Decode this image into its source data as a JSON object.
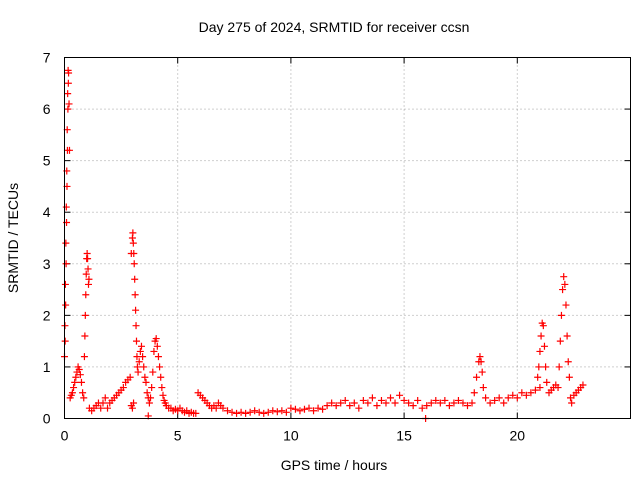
{
  "chart_data": {
    "type": "scatter",
    "title": "Day 275 of 2024, SRMTID for receiver ccsn",
    "xlabel": "GPS time / hours",
    "ylabel": "SRMTID / TECUs",
    "xlim": [
      0,
      25
    ],
    "ylim": [
      0,
      7
    ],
    "xticks": [
      0,
      5,
      10,
      15,
      20
    ],
    "xtick_labels": [
      "0",
      "5",
      "10",
      "15",
      "20"
    ],
    "yticks": [
      0,
      1,
      2,
      3,
      4,
      5,
      6,
      7
    ],
    "ytick_labels": [
      "0",
      "1",
      "2",
      "3",
      "4",
      "5",
      "6",
      "7"
    ],
    "grid": true,
    "marker": "+",
    "color": "#ff0000",
    "series": [
      {
        "name": "SRMTID",
        "points": [
          [
            0.0,
            1.2
          ],
          [
            0.02,
            1.8
          ],
          [
            0.04,
            2.6
          ],
          [
            0.06,
            3.4
          ],
          [
            0.08,
            4.1
          ],
          [
            0.1,
            4.8
          ],
          [
            0.12,
            5.6
          ],
          [
            0.14,
            6.3
          ],
          [
            0.16,
            6.75
          ],
          [
            0.18,
            6.7
          ],
          [
            0.2,
            6.1
          ],
          [
            0.22,
            5.2
          ],
          [
            0.03,
            1.5
          ],
          [
            0.05,
            2.2
          ],
          [
            0.07,
            3.0
          ],
          [
            0.09,
            3.8
          ],
          [
            0.11,
            4.5
          ],
          [
            0.13,
            5.2
          ],
          [
            0.15,
            6.0
          ],
          [
            0.17,
            6.5
          ],
          [
            0.25,
            0.4
          ],
          [
            0.3,
            0.45
          ],
          [
            0.35,
            0.5
          ],
          [
            0.4,
            0.6
          ],
          [
            0.45,
            0.7
          ],
          [
            0.5,
            0.8
          ],
          [
            0.55,
            0.9
          ],
          [
            0.6,
            1.0
          ],
          [
            0.65,
            0.95
          ],
          [
            0.7,
            0.85
          ],
          [
            0.75,
            0.7
          ],
          [
            0.8,
            0.5
          ],
          [
            0.85,
            0.4
          ],
          [
            0.88,
            1.2
          ],
          [
            0.9,
            1.6
          ],
          [
            0.92,
            2.0
          ],
          [
            0.94,
            2.4
          ],
          [
            0.96,
            2.8
          ],
          [
            0.98,
            3.1
          ],
          [
            1.0,
            3.2
          ],
          [
            1.02,
            3.1
          ],
          [
            1.04,
            2.9
          ],
          [
            1.06,
            2.6
          ],
          [
            1.08,
            2.7
          ],
          [
            1.1,
            0.2
          ],
          [
            1.2,
            0.15
          ],
          [
            1.3,
            0.2
          ],
          [
            1.4,
            0.25
          ],
          [
            1.5,
            0.3
          ],
          [
            1.6,
            0.2
          ],
          [
            1.7,
            0.3
          ],
          [
            1.8,
            0.4
          ],
          [
            1.9,
            0.2
          ],
          [
            2.0,
            0.3
          ],
          [
            2.1,
            0.35
          ],
          [
            2.2,
            0.4
          ],
          [
            2.3,
            0.45
          ],
          [
            2.4,
            0.5
          ],
          [
            2.5,
            0.55
          ],
          [
            2.6,
            0.6
          ],
          [
            2.7,
            0.7
          ],
          [
            2.8,
            0.75
          ],
          [
            2.9,
            0.8
          ],
          [
            2.95,
            0.25
          ],
          [
            3.0,
            0.2
          ],
          [
            3.05,
            0.3
          ],
          [
            2.95,
            3.2
          ],
          [
            3.0,
            3.5
          ],
          [
            3.02,
            3.6
          ],
          [
            3.04,
            3.4
          ],
          [
            3.06,
            3.2
          ],
          [
            3.08,
            3.0
          ],
          [
            3.1,
            2.7
          ],
          [
            3.12,
            2.4
          ],
          [
            3.14,
            2.1
          ],
          [
            3.16,
            1.8
          ],
          [
            3.18,
            1.5
          ],
          [
            3.2,
            1.2
          ],
          [
            3.22,
            1.0
          ],
          [
            3.25,
            0.9
          ],
          [
            3.3,
            1.1
          ],
          [
            3.35,
            1.3
          ],
          [
            3.4,
            1.4
          ],
          [
            3.45,
            1.2
          ],
          [
            3.5,
            1.0
          ],
          [
            3.55,
            0.8
          ],
          [
            3.6,
            0.7
          ],
          [
            3.65,
            0.5
          ],
          [
            3.7,
            0.4
          ],
          [
            3.75,
            0.3
          ],
          [
            3.8,
            0.4
          ],
          [
            3.85,
            0.6
          ],
          [
            3.9,
            0.9
          ],
          [
            3.7,
            0.05
          ],
          [
            3.95,
            1.3
          ],
          [
            4.0,
            1.5
          ],
          [
            4.05,
            1.55
          ],
          [
            4.1,
            1.4
          ],
          [
            4.15,
            1.2
          ],
          [
            4.2,
            1.0
          ],
          [
            4.25,
            0.8
          ],
          [
            4.3,
            0.6
          ],
          [
            4.35,
            0.45
          ],
          [
            4.4,
            0.35
          ],
          [
            4.45,
            0.3
          ],
          [
            4.5,
            0.25
          ],
          [
            4.6,
            0.2
          ],
          [
            4.7,
            0.2
          ],
          [
            4.8,
            0.15
          ],
          [
            4.9,
            0.18
          ],
          [
            5.0,
            0.15
          ],
          [
            5.1,
            0.2
          ],
          [
            5.2,
            0.15
          ],
          [
            5.3,
            0.12
          ],
          [
            5.4,
            0.15
          ],
          [
            5.5,
            0.1
          ],
          [
            5.6,
            0.12
          ],
          [
            5.7,
            0.1
          ],
          [
            5.8,
            0.1
          ],
          [
            5.9,
            0.5
          ],
          [
            6.0,
            0.45
          ],
          [
            6.1,
            0.4
          ],
          [
            6.2,
            0.35
          ],
          [
            6.3,
            0.3
          ],
          [
            6.4,
            0.25
          ],
          [
            6.5,
            0.2
          ],
          [
            6.6,
            0.25
          ],
          [
            6.7,
            0.2
          ],
          [
            6.8,
            0.3
          ],
          [
            6.9,
            0.25
          ],
          [
            7.0,
            0.2
          ],
          [
            7.2,
            0.15
          ],
          [
            7.4,
            0.12
          ],
          [
            7.6,
            0.1
          ],
          [
            7.8,
            0.12
          ],
          [
            8.0,
            0.1
          ],
          [
            8.2,
            0.12
          ],
          [
            8.4,
            0.15
          ],
          [
            8.6,
            0.12
          ],
          [
            8.8,
            0.1
          ],
          [
            9.0,
            0.12
          ],
          [
            9.2,
            0.15
          ],
          [
            9.4,
            0.13
          ],
          [
            9.6,
            0.15
          ],
          [
            9.8,
            0.12
          ],
          [
            10.0,
            0.2
          ],
          [
            10.2,
            0.18
          ],
          [
            10.4,
            0.15
          ],
          [
            10.6,
            0.18
          ],
          [
            10.8,
            0.2
          ],
          [
            11.0,
            0.15
          ],
          [
            11.2,
            0.2
          ],
          [
            11.4,
            0.18
          ],
          [
            11.6,
            0.25
          ],
          [
            11.8,
            0.3
          ],
          [
            12.0,
            0.25
          ],
          [
            12.2,
            0.3
          ],
          [
            12.4,
            0.35
          ],
          [
            12.6,
            0.25
          ],
          [
            12.8,
            0.3
          ],
          [
            13.0,
            0.2
          ],
          [
            13.2,
            0.35
          ],
          [
            13.4,
            0.3
          ],
          [
            13.6,
            0.4
          ],
          [
            13.8,
            0.25
          ],
          [
            14.0,
            0.35
          ],
          [
            14.2,
            0.3
          ],
          [
            14.4,
            0.4
          ],
          [
            14.6,
            0.3
          ],
          [
            14.8,
            0.45
          ],
          [
            15.0,
            0.35
          ],
          [
            15.2,
            0.3
          ],
          [
            15.4,
            0.25
          ],
          [
            15.6,
            0.35
          ],
          [
            15.8,
            0.2
          ],
          [
            16.0,
            0.25
          ],
          [
            16.2,
            0.3
          ],
          [
            16.4,
            0.35
          ],
          [
            16.6,
            0.3
          ],
          [
            16.8,
            0.35
          ],
          [
            17.0,
            0.25
          ],
          [
            17.2,
            0.3
          ],
          [
            17.4,
            0.35
          ],
          [
            17.6,
            0.3
          ],
          [
            17.8,
            0.25
          ],
          [
            18.0,
            0.3
          ],
          [
            15.95,
            0.0
          ],
          [
            18.1,
            0.5
          ],
          [
            18.2,
            0.8
          ],
          [
            18.3,
            1.1
          ],
          [
            18.35,
            1.2
          ],
          [
            18.4,
            1.1
          ],
          [
            18.45,
            0.9
          ],
          [
            18.5,
            0.6
          ],
          [
            18.6,
            0.4
          ],
          [
            18.8,
            0.3
          ],
          [
            19.0,
            0.35
          ],
          [
            19.2,
            0.4
          ],
          [
            19.4,
            0.3
          ],
          [
            19.6,
            0.4
          ],
          [
            19.8,
            0.45
          ],
          [
            20.0,
            0.4
          ],
          [
            20.2,
            0.5
          ],
          [
            20.4,
            0.45
          ],
          [
            20.6,
            0.5
          ],
          [
            20.8,
            0.55
          ],
          [
            21.0,
            0.6
          ],
          [
            20.9,
            0.8
          ],
          [
            20.95,
            1.0
          ],
          [
            21.0,
            1.3
          ],
          [
            21.05,
            1.6
          ],
          [
            21.1,
            1.85
          ],
          [
            21.15,
            1.8
          ],
          [
            21.2,
            1.4
          ],
          [
            21.25,
            1.0
          ],
          [
            21.3,
            0.7
          ],
          [
            21.4,
            0.5
          ],
          [
            21.5,
            0.55
          ],
          [
            21.6,
            0.6
          ],
          [
            21.7,
            0.65
          ],
          [
            21.8,
            0.6
          ],
          [
            21.85,
            1.0
          ],
          [
            21.9,
            1.5
          ],
          [
            21.95,
            2.0
          ],
          [
            22.0,
            2.5
          ],
          [
            22.05,
            2.75
          ],
          [
            22.1,
            2.6
          ],
          [
            22.15,
            2.2
          ],
          [
            22.2,
            1.6
          ],
          [
            22.25,
            1.1
          ],
          [
            22.3,
            0.8
          ],
          [
            22.35,
            0.4
          ],
          [
            22.4,
            0.3
          ],
          [
            22.5,
            0.45
          ],
          [
            22.6,
            0.5
          ],
          [
            22.7,
            0.55
          ],
          [
            22.8,
            0.6
          ],
          [
            22.9,
            0.65
          ]
        ]
      }
    ]
  }
}
